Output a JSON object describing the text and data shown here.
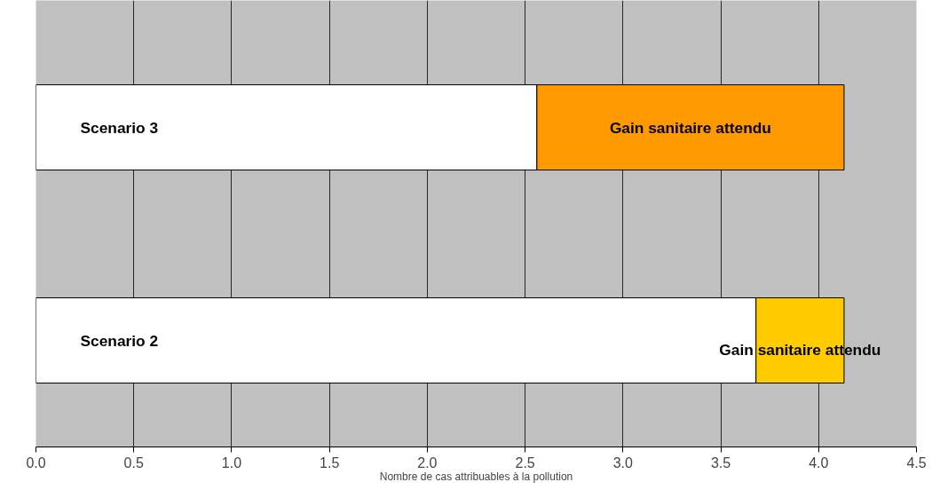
{
  "chart_data": {
    "type": "bar",
    "orientation": "horizontal",
    "stacked": true,
    "categories": [
      "Scenario 3",
      "Scenario 2"
    ],
    "series": [
      {
        "color": "#ffffff",
        "values": [
          2.56,
          3.68
        ]
      },
      {
        "colors": [
          "#ff9900",
          "#ffcc00"
        ],
        "values": [
          1.57,
          0.45
        ],
        "value_labels": [
          "Gain sanitaire attendu",
          "Gain sanitaire attendu"
        ]
      }
    ],
    "xlabel": "Nombre de cas attribuables à la pollution",
    "xlim": [
      0,
      4.5
    ],
    "xticks": [
      {
        "value": 0,
        "label": "0.0"
      },
      0.5,
      {
        "value": 1,
        "label": "1.0"
      },
      1.5,
      {
        "value": 2,
        "label": "2.0"
      },
      2.5,
      {
        "value": 3,
        "label": "3.0"
      },
      3.5,
      {
        "value": 4,
        "label": "4.0"
      },
      4.5
    ],
    "grid": "x",
    "tick_labels": "x"
  }
}
